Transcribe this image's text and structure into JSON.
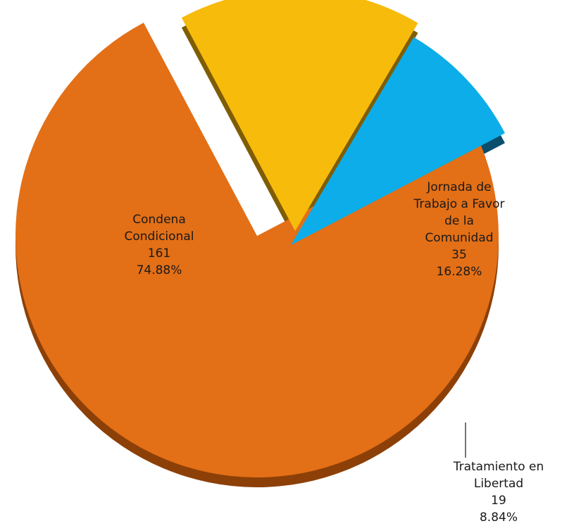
{
  "chart_data": {
    "type": "pie",
    "title": "",
    "slices": [
      {
        "label_lines": [
          "Condena",
          "Condicional"
        ],
        "count": "161",
        "percent": "74.88%",
        "value": 161,
        "color": "#E36F16",
        "side_color": "#8C4008"
      },
      {
        "label_lines": [
          "Jornada de",
          "Trabajo a Favor",
          "de la",
          "Comunidad"
        ],
        "count": "35",
        "percent": "16.28%",
        "value": 35,
        "color": "#F7BB0C",
        "side_color": "#7F5D05"
      },
      {
        "label_lines": [
          "Tratamiento en",
          "Libertad"
        ],
        "count": "19",
        "percent": "8.84%",
        "value": 19,
        "color": "#0CADE8",
        "side_color": "#0A4E6C"
      }
    ]
  }
}
